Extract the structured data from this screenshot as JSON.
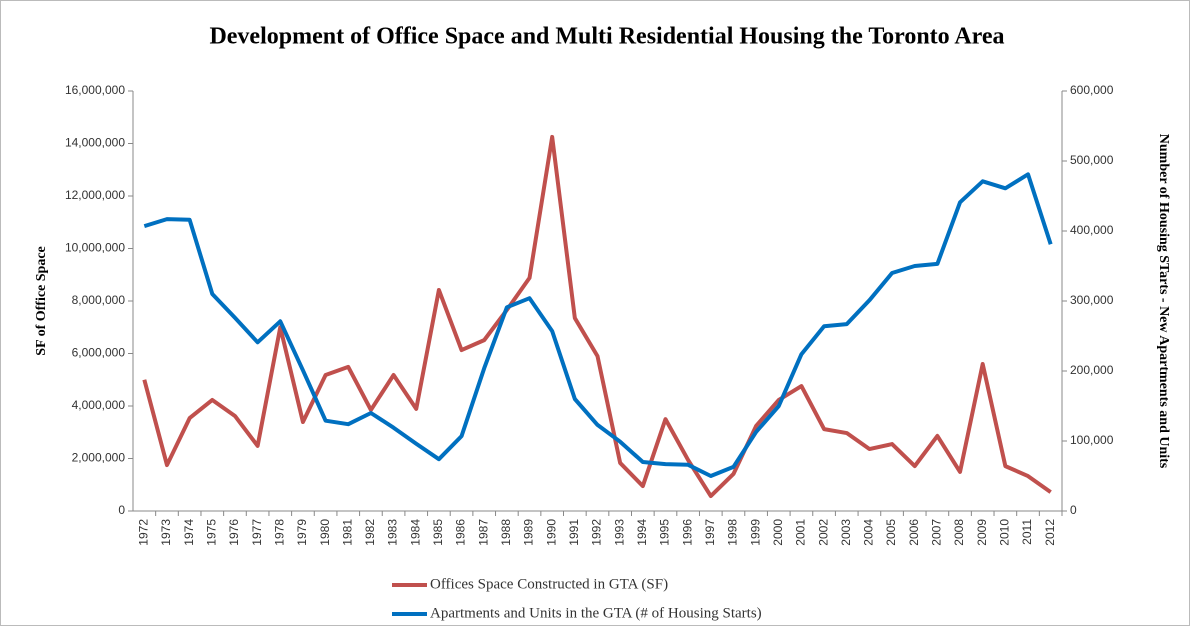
{
  "chart_data": {
    "type": "line",
    "title": "Development of Office Space and Multi Residential Housing the Toronto Area",
    "y_label": "SF of Office Space",
    "y2_label": "Number of Housing STarts - New Apartments and Units",
    "categories": [
      "1972",
      "1973",
      "1974",
      "1975",
      "1976",
      "1977",
      "1978",
      "1979",
      "1980",
      "1981",
      "1982",
      "1983",
      "1984",
      "1985",
      "1986",
      "1987",
      "1988",
      "1989",
      "1990",
      "1991",
      "1992",
      "1993",
      "1994",
      "1995",
      "1996",
      "1997",
      "1998",
      "1999",
      "2000",
      "2001",
      "2002",
      "2003",
      "2004",
      "2005",
      "2006",
      "2007",
      "2008",
      "2009",
      "2010",
      "2011",
      "2012"
    ],
    "series": [
      {
        "name": "Offices Space Constructed in GTA (SF)",
        "color": "#c0504d",
        "axis": "y",
        "values": [
          5000000,
          1750000,
          3540000,
          4230000,
          3620000,
          2480000,
          7000000,
          3390000,
          5180000,
          5490000,
          3850000,
          5180000,
          3890000,
          8420000,
          6130000,
          6510000,
          7660000,
          8880000,
          14250000,
          7350000,
          5900000,
          1830000,
          950000,
          3500000,
          1940000,
          570000,
          1410000,
          3240000,
          4230000,
          4760000,
          3120000,
          2970000,
          2360000,
          2550000,
          1710000,
          2860000,
          1490000,
          5600000,
          1710000,
          1330000,
          720000
        ]
      },
      {
        "name": "Apartments and Units in the GTA (# of Housing Starts)",
        "color": "#0070c0",
        "axis": "y2",
        "values": [
          407000,
          417000,
          416000,
          310000,
          276000,
          241000,
          271000,
          201000,
          129000,
          124000,
          140000,
          119000,
          96000,
          74000,
          107000,
          204000,
          291000,
          304000,
          257000,
          160000,
          123000,
          99000,
          70000,
          67000,
          66000,
          50000,
          63000,
          113000,
          150000,
          224000,
          264000,
          267000,
          301000,
          340000,
          350000,
          353000,
          441000,
          471000,
          461000,
          481000,
          381000
        ]
      }
    ],
    "ylim": [
      0,
      16000000
    ],
    "yticks": [
      0,
      {
        "value": 2000000,
        "label": "2,000,000"
      },
      {
        "value": 4000000,
        "label": "4,000,000"
      },
      {
        "value": 6000000,
        "label": "6,000,000"
      },
      {
        "value": 8000000,
        "label": "8,000,000"
      },
      {
        "value": 10000000,
        "label": "10,000,000"
      },
      {
        "value": 12000000,
        "label": "12,000,000"
      },
      {
        "value": 14000000,
        "label": "14,000,000"
      },
      {
        "value": 16000000,
        "label": "16,000,000"
      }
    ],
    "y2lim": [
      0,
      600000
    ],
    "y2ticks": [
      0,
      {
        "value": 100000,
        "label": "100,000"
      },
      {
        "value": 200000,
        "label": "200,000"
      },
      {
        "value": 300000,
        "label": "300,000"
      },
      {
        "value": 400000,
        "label": "400,000"
      },
      {
        "value": 500000,
        "label": "500,000"
      },
      {
        "value": 600000,
        "label": "600,000"
      }
    ],
    "grid": false
  }
}
